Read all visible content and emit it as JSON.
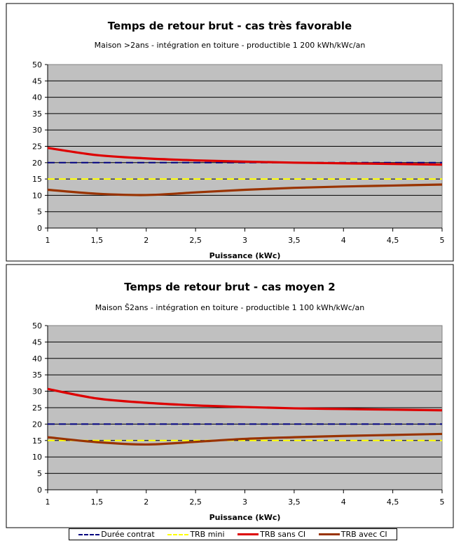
{
  "chart_data": [
    {
      "type": "line",
      "title": "Temps de retour brut - cas très favorable",
      "subtitle": "Maison >2ans - intégration en toiture - productible 1 200 kWh/kWc/an",
      "xlabel": "Puissance (kWc)",
      "ylabel": "",
      "x": [
        1,
        1.5,
        2,
        2.5,
        3,
        3.5,
        4,
        4.5,
        5
      ],
      "x_tick_labels": [
        "1",
        "1,5",
        "2",
        "2,5",
        "3",
        "3,5",
        "4",
        "4,5",
        "5"
      ],
      "xlim": [
        1,
        5
      ],
      "ylim": [
        0,
        50
      ],
      "y_ticks": [
        0,
        5,
        10,
        15,
        20,
        25,
        30,
        35,
        40,
        45,
        50
      ],
      "grid": true,
      "series": [
        {
          "name": "Durée contrat",
          "values": [
            20,
            20,
            20,
            20,
            20,
            20,
            20,
            20,
            20
          ]
        },
        {
          "name": "TRB mini",
          "values": [
            15,
            15,
            15,
            15,
            15,
            15,
            15,
            15,
            15
          ]
        },
        {
          "name": "TRB sans CI",
          "values": [
            24.5,
            22.3,
            21.3,
            20.7,
            20.3,
            20,
            19.8,
            19.6,
            19.4
          ]
        },
        {
          "name": "TRB avec CI",
          "values": [
            11.7,
            10.5,
            10.1,
            10.9,
            11.7,
            12.3,
            12.7,
            13,
            13.3
          ]
        }
      ]
    },
    {
      "type": "line",
      "title": "Temps de retour brut - cas moyen 2",
      "subtitle": "Maison Š2ans - intégration en toiture - productible 1 100 kWh/kWc/an",
      "xlabel": "Puissance (kWc)",
      "ylabel": "",
      "x": [
        1,
        1.5,
        2,
        2.5,
        3,
        3.5,
        4,
        4.5,
        5
      ],
      "x_tick_labels": [
        "1",
        "1,5",
        "2",
        "2,5",
        "3",
        "3,5",
        "4",
        "4,5",
        "5"
      ],
      "xlim": [
        1,
        5
      ],
      "ylim": [
        0,
        50
      ],
      "y_ticks": [
        0,
        5,
        10,
        15,
        20,
        25,
        30,
        35,
        40,
        45,
        50
      ],
      "grid": true,
      "series": [
        {
          "name": "Durée contrat",
          "values": [
            20,
            20,
            20,
            20,
            20,
            20,
            20,
            20,
            20
          ]
        },
        {
          "name": "TRB mini",
          "values": [
            15,
            15,
            15,
            15,
            15,
            15,
            15,
            15,
            15
          ]
        },
        {
          "name": "TRB sans CI",
          "values": [
            30.7,
            27.8,
            26.5,
            25.7,
            25.2,
            24.8,
            24.6,
            24.4,
            24.2
          ]
        },
        {
          "name": "TRB avec CI",
          "values": [
            16,
            14.5,
            13.8,
            14.6,
            15.5,
            16,
            16.4,
            16.7,
            17
          ]
        }
      ]
    }
  ],
  "legend": {
    "placement": "bottom",
    "items": [
      {
        "label": "Durée contrat",
        "color": "#000080",
        "style": "dashed"
      },
      {
        "label": "TRB mini",
        "color": "#ffff00",
        "style": "dashed"
      },
      {
        "label": "TRB sans CI",
        "color": "#dd0000",
        "style": "solid"
      },
      {
        "label": "TRB avec CI",
        "color": "#993300",
        "style": "solid"
      }
    ]
  },
  "colors": {
    "plot_background": "#c0c0c0",
    "duree_contrat": "#000080",
    "trb_mini": "#ffff00",
    "trb_sans_ci": "#dd0000",
    "trb_avec_ci": "#993300"
  }
}
